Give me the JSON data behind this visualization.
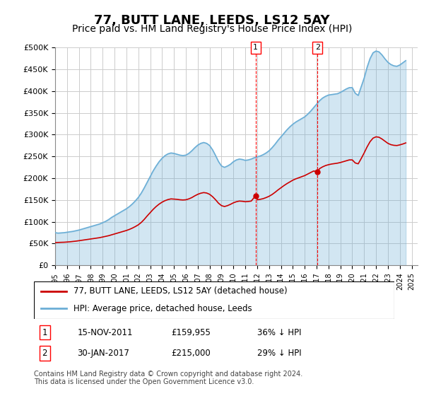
{
  "title": "77, BUTT LANE, LEEDS, LS12 5AY",
  "subtitle": "Price paid vs. HM Land Registry's House Price Index (HPI)",
  "title_fontsize": 13,
  "subtitle_fontsize": 10,
  "ylabel_ticks": [
    "£0",
    "£50K",
    "£100K",
    "£150K",
    "£200K",
    "£250K",
    "£300K",
    "£350K",
    "£400K",
    "£450K",
    "£500K"
  ],
  "ytick_values": [
    0,
    50000,
    100000,
    150000,
    200000,
    250000,
    300000,
    350000,
    400000,
    450000,
    500000
  ],
  "ylim": [
    0,
    500000
  ],
  "xlim_start": 1995.0,
  "xlim_end": 2025.5,
  "hpi_color": "#6baed6",
  "price_color": "#cc0000",
  "background_color": "#ffffff",
  "grid_color": "#cccccc",
  "marker1_x": 2011.87,
  "marker1_y": 159955,
  "marker2_x": 2017.08,
  "marker2_y": 215000,
  "marker1_label": "1",
  "marker2_label": "2",
  "legend_line1": "77, BUTT LANE, LEEDS, LS12 5AY (detached house)",
  "legend_line2": "HPI: Average price, detached house, Leeds",
  "table_row1": [
    "1",
    "15-NOV-2011",
    "£159,955",
    "36% ↓ HPI"
  ],
  "table_row2": [
    "2",
    "30-JAN-2017",
    "£215,000",
    "29% ↓ HPI"
  ],
  "footer": "Contains HM Land Registry data © Crown copyright and database right 2024.\nThis data is licensed under the Open Government Licence v3.0.",
  "hpi_data": {
    "years": [
      1995.0,
      1995.25,
      1995.5,
      1995.75,
      1996.0,
      1996.25,
      1996.5,
      1996.75,
      1997.0,
      1997.25,
      1997.5,
      1997.75,
      1998.0,
      1998.25,
      1998.5,
      1998.75,
      1999.0,
      1999.25,
      1999.5,
      1999.75,
      2000.0,
      2000.25,
      2000.5,
      2000.75,
      2001.0,
      2001.25,
      2001.5,
      2001.75,
      2002.0,
      2002.25,
      2002.5,
      2002.75,
      2003.0,
      2003.25,
      2003.5,
      2003.75,
      2004.0,
      2004.25,
      2004.5,
      2004.75,
      2005.0,
      2005.25,
      2005.5,
      2005.75,
      2006.0,
      2006.25,
      2006.5,
      2006.75,
      2007.0,
      2007.25,
      2007.5,
      2007.75,
      2008.0,
      2008.25,
      2008.5,
      2008.75,
      2009.0,
      2009.25,
      2009.5,
      2009.75,
      2010.0,
      2010.25,
      2010.5,
      2010.75,
      2011.0,
      2011.25,
      2011.5,
      2011.75,
      2012.0,
      2012.25,
      2012.5,
      2012.75,
      2013.0,
      2013.25,
      2013.5,
      2013.75,
      2014.0,
      2014.25,
      2014.5,
      2014.75,
      2015.0,
      2015.25,
      2015.5,
      2015.75,
      2016.0,
      2016.25,
      2016.5,
      2016.75,
      2017.0,
      2017.25,
      2017.5,
      2017.75,
      2018.0,
      2018.25,
      2018.5,
      2018.75,
      2019.0,
      2019.25,
      2019.5,
      2019.75,
      2020.0,
      2020.25,
      2020.5,
      2020.75,
      2021.0,
      2021.25,
      2021.5,
      2021.75,
      2022.0,
      2022.25,
      2022.5,
      2022.75,
      2023.0,
      2023.25,
      2023.5,
      2023.75,
      2024.0,
      2024.25,
      2024.5
    ],
    "values": [
      75000,
      74000,
      74500,
      75000,
      76000,
      77000,
      78000,
      79500,
      81000,
      83000,
      85000,
      87000,
      89000,
      91000,
      93000,
      95000,
      98000,
      101000,
      105000,
      110000,
      114000,
      118000,
      122000,
      126000,
      130000,
      135000,
      141000,
      148000,
      156000,
      166000,
      178000,
      191000,
      204000,
      217000,
      228000,
      238000,
      246000,
      252000,
      256000,
      258000,
      257000,
      255000,
      253000,
      252000,
      253000,
      257000,
      263000,
      270000,
      276000,
      280000,
      282000,
      280000,
      275000,
      265000,
      252000,
      238000,
      228000,
      225000,
      228000,
      232000,
      238000,
      242000,
      244000,
      243000,
      241000,
      242000,
      244000,
      247000,
      249000,
      251000,
      254000,
      258000,
      263000,
      270000,
      278000,
      287000,
      295000,
      303000,
      311000,
      318000,
      324000,
      329000,
      333000,
      337000,
      341000,
      347000,
      354000,
      362000,
      370000,
      378000,
      384000,
      388000,
      391000,
      392000,
      393000,
      394000,
      397000,
      401000,
      405000,
      408000,
      408000,
      395000,
      390000,
      410000,
      430000,
      455000,
      475000,
      488000,
      492000,
      490000,
      483000,
      474000,
      466000,
      461000,
      458000,
      457000,
      460000,
      465000,
      470000
    ]
  },
  "price_data": {
    "years": [
      1995.0,
      1995.25,
      1995.5,
      1995.75,
      1996.0,
      1996.25,
      1996.5,
      1996.75,
      1997.0,
      1997.25,
      1997.5,
      1997.75,
      1998.0,
      1998.25,
      1998.5,
      1998.75,
      1999.0,
      1999.25,
      1999.5,
      1999.75,
      2000.0,
      2000.25,
      2000.5,
      2000.75,
      2001.0,
      2001.25,
      2001.5,
      2001.75,
      2002.0,
      2002.25,
      2002.5,
      2002.75,
      2003.0,
      2003.25,
      2003.5,
      2003.75,
      2004.0,
      2004.25,
      2004.5,
      2004.75,
      2005.0,
      2005.25,
      2005.5,
      2005.75,
      2006.0,
      2006.25,
      2006.5,
      2006.75,
      2007.0,
      2007.25,
      2007.5,
      2007.75,
      2008.0,
      2008.25,
      2008.5,
      2008.75,
      2009.0,
      2009.25,
      2009.5,
      2009.75,
      2010.0,
      2010.25,
      2010.5,
      2010.75,
      2011.0,
      2011.25,
      2011.5,
      2011.87,
      2012.0,
      2012.25,
      2012.5,
      2012.75,
      2013.0,
      2013.25,
      2013.5,
      2013.75,
      2014.0,
      2014.25,
      2014.5,
      2014.75,
      2015.0,
      2015.25,
      2015.5,
      2015.75,
      2016.0,
      2016.25,
      2016.5,
      2016.75,
      2017.08,
      2017.25,
      2017.5,
      2017.75,
      2018.0,
      2018.25,
      2018.5,
      2018.75,
      2019.0,
      2019.25,
      2019.5,
      2019.75,
      2020.0,
      2020.25,
      2020.5,
      2020.75,
      2021.0,
      2021.25,
      2021.5,
      2021.75,
      2022.0,
      2022.25,
      2022.5,
      2022.75,
      2023.0,
      2023.25,
      2023.5,
      2023.75,
      2024.0,
      2024.25,
      2024.5
    ],
    "values": [
      52000,
      52500,
      52800,
      53000,
      53500,
      54000,
      54800,
      55500,
      56500,
      57500,
      58500,
      59500,
      60500,
      61500,
      62500,
      63500,
      65000,
      66500,
      68000,
      70000,
      72000,
      74000,
      76000,
      78000,
      80000,
      82500,
      85500,
      89000,
      93000,
      98500,
      105500,
      113500,
      121000,
      128500,
      135000,
      140500,
      145000,
      148500,
      151000,
      152500,
      152000,
      151500,
      150500,
      150000,
      150500,
      152500,
      155500,
      159500,
      163000,
      165500,
      167000,
      166000,
      163000,
      157500,
      150500,
      142500,
      137000,
      135000,
      137000,
      140000,
      143500,
      146000,
      147500,
      147000,
      146000,
      146500,
      147500,
      159955,
      150500,
      151500,
      153000,
      155500,
      158500,
      162500,
      167500,
      173000,
      178000,
      183000,
      187500,
      191500,
      195500,
      198500,
      201000,
      203500,
      206000,
      209500,
      213000,
      216500,
      215000,
      222000,
      226000,
      229000,
      231000,
      232500,
      233500,
      234500,
      236000,
      238000,
      240000,
      242000,
      242000,
      235000,
      233000,
      245000,
      258000,
      272000,
      284000,
      292000,
      295000,
      294000,
      290000,
      285000,
      280000,
      277000,
      275500,
      275000,
      276500,
      278500,
      281000
    ]
  }
}
